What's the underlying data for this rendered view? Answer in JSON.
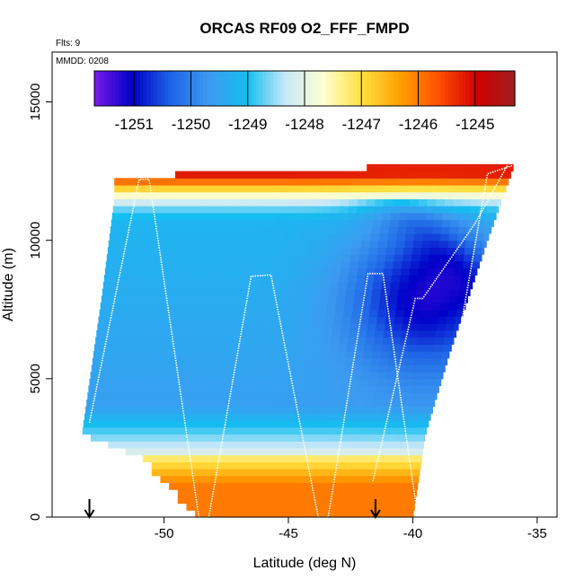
{
  "chart_data": {
    "type": "heatmap",
    "title": "ORCAS RF09 O2_FFF_FMPD",
    "flights_note": "Flts: 9",
    "date_note": "MMDD: 0208",
    "xlabel": "Latitude (deg N)",
    "ylabel": "Altitude (m)",
    "xlim": [
      -54.5,
      -34.2
    ],
    "ylim": [
      0,
      16800
    ],
    "x_ticks": [
      -50,
      -45,
      -40,
      -35
    ],
    "y_ticks": [
      0,
      5000,
      10000,
      15000
    ],
    "grid": false,
    "colorbar": {
      "placement": "top-inside",
      "min": -1251.7,
      "max": -1244.3,
      "ticks": [
        -1251,
        -1250,
        -1249,
        -1248,
        -1247,
        -1246,
        -1245
      ],
      "colors": [
        "#7A1AE8",
        "#0000C8",
        "#1E64E6",
        "#3C9BF0",
        "#14BEF0",
        "#C8E8F8",
        "#FFFFD0",
        "#FFE040",
        "#FFA000",
        "#FF5000",
        "#D20000",
        "#A01E1E"
      ]
    },
    "markers": [
      {
        "label": "down-arrow",
        "x": -53.0
      },
      {
        "label": "down-arrow",
        "x": -41.5
      }
    ],
    "flight_track": [
      [
        -53.0,
        3400
      ],
      [
        -51.0,
        12200
      ],
      [
        -50.6,
        12200
      ],
      [
        -48.6,
        0
      ],
      [
        -48.2,
        0
      ],
      [
        -46.5,
        8700
      ],
      [
        -45.7,
        8750
      ],
      [
        -43.8,
        0
      ],
      [
        -43.4,
        0
      ],
      [
        -41.8,
        8800
      ],
      [
        -41.2,
        8800
      ],
      [
        -39.8,
        0
      ],
      [
        -39.4,
        0
      ],
      [
        -37.0,
        12400
      ],
      [
        -36.0,
        12700
      ]
    ],
    "flight_track_2": [
      [
        -41.6,
        1300
      ],
      [
        -39.9,
        7900
      ],
      [
        -39.6,
        7900
      ],
      [
        -37.5,
        10600
      ],
      [
        -36.2,
        12700
      ]
    ],
    "field_region": {
      "left_edge": [
        [
          -53.3,
          3000
        ],
        [
          -52.5,
          8000
        ],
        [
          -52.0,
          11500
        ],
        [
          -52.0,
          12300
        ]
      ],
      "top_edge": [
        [
          -52.0,
          12300
        ],
        [
          -45.0,
          12500
        ],
        [
          -40.0,
          12700
        ],
        [
          -35.9,
          12800
        ]
      ],
      "right_edge": [
        [
          -35.9,
          12800
        ],
        [
          -37.0,
          10000
        ],
        [
          -38.5,
          6000
        ],
        [
          -39.5,
          3000
        ],
        [
          -40.0,
          0
        ]
      ],
      "bottom_edge": [
        [
          -53.3,
          3000
        ],
        [
          -51.0,
          2200
        ],
        [
          -49.5,
          800
        ],
        [
          -48.5,
          0
        ],
        [
          -40.0,
          0
        ]
      ]
    },
    "field_features": {
      "surface_value": -1246.0,
      "lower_value": -1247.3,
      "mid_value": -1249.6,
      "upper_value": -1249.2,
      "top_value": -1245.2,
      "minimum_center": [
        -39.5,
        8000
      ],
      "minimum_value": -1251.4
    }
  }
}
